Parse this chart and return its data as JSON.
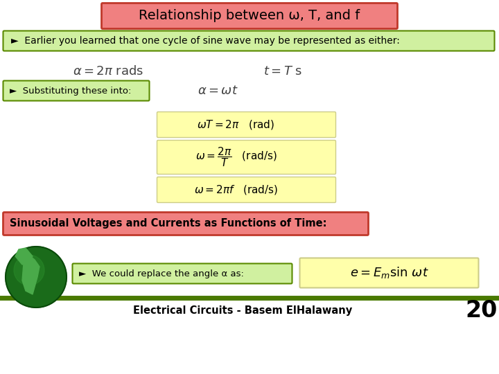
{
  "title": "Relationship between ω, T, and f",
  "title_bg": "#f08080",
  "title_border": "#c0392b",
  "bullet1": "►  Earlier you learned that one cycle of sine wave may be represented as either:",
  "bullet1_bg": "#d0f0a0",
  "bullet1_border": "#5a8a00",
  "eq1a": "$\\alpha = 2\\pi$ rads",
  "eq1b": "$t = T$ s",
  "bullet2_text": "►  Substituting these into:",
  "bullet2_bg": "#d0f0a0",
  "bullet2_border": "#5a8a00",
  "eq2": "$\\alpha = \\omega t$",
  "eq3a": "$\\omega T = 2\\pi$   (rad)",
  "eq3b": "$\\omega = \\dfrac{2\\pi}{T}$   (rad/s)",
  "eq3c": "$\\omega = 2\\pi f$   (rad/s)",
  "eq_bg": "#ffffaa",
  "eq_border": "#cccc88",
  "section2_text": "Sinusoidal Voltages and Currents as Functions of Time:",
  "section2_bg": "#f08080",
  "section2_border": "#c0392b",
  "bullet3_text": "►  We could replace the angle α as:",
  "bullet3_bg": "#d0f0a0",
  "bullet3_border": "#5a8a00",
  "eq4": "$e = E_m\\sin\\,\\omega t$",
  "footer_text": "Electrical Circuits - Basem ElHalawany",
  "footer_number": "20",
  "footer_line_color": "#4a7a00",
  "bg_color": "#ffffff"
}
